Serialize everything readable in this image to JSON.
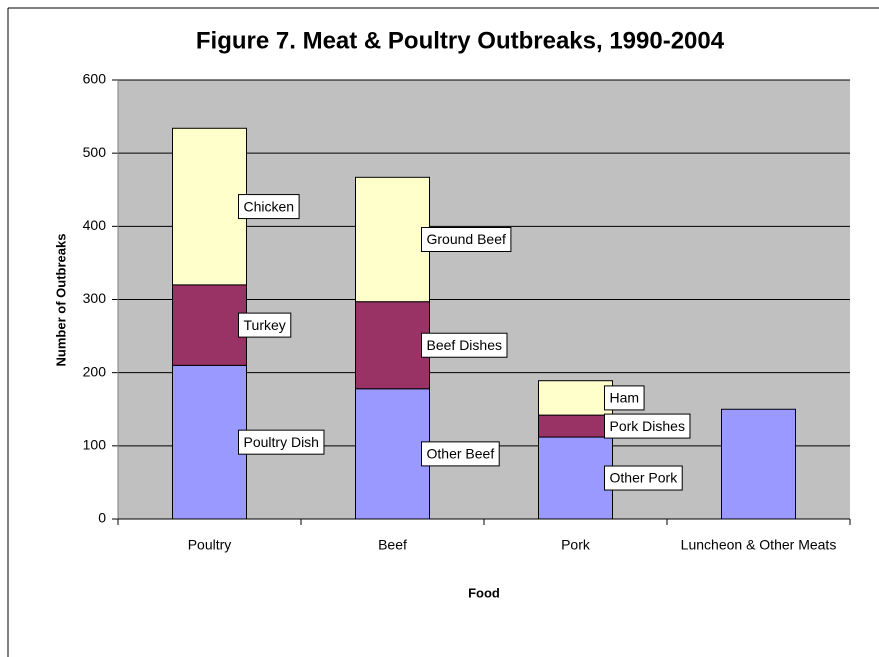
{
  "chart_data": {
    "type": "bar",
    "stacked": true,
    "title": "Figure 7.  Meat & Poultry Outbreaks, 1990-2004",
    "xlabel": "Food",
    "ylabel": "Number of Outbreaks",
    "categories": [
      "Poultry",
      "Beef",
      "Pork",
      "Luncheon & Other Meats"
    ],
    "stacks": [
      [
        {
          "name": "Poultry Dish",
          "value": 210,
          "color": "#9999ff"
        },
        {
          "name": "Turkey",
          "value": 110,
          "color": "#993366"
        },
        {
          "name": "Chicken",
          "value": 214,
          "color": "#ffffcc"
        }
      ],
      [
        {
          "name": "Other Beef",
          "value": 178,
          "color": "#9999ff"
        },
        {
          "name": "Beef Dishes",
          "value": 119,
          "color": "#993366"
        },
        {
          "name": "Ground Beef",
          "value": 170,
          "color": "#ffffcc"
        }
      ],
      [
        {
          "name": "Other Pork",
          "value": 112,
          "color": "#9999ff"
        },
        {
          "name": "Pork Dishes",
          "value": 30,
          "color": "#993366"
        },
        {
          "name": "Ham",
          "value": 47,
          "color": "#ffffcc"
        }
      ],
      [
        {
          "value": 150,
          "color": "#9999ff"
        }
      ]
    ],
    "ylim": [
      0,
      600
    ],
    "yticks": [
      0,
      100,
      200,
      300,
      400,
      500,
      600
    ],
    "grid": true
  }
}
